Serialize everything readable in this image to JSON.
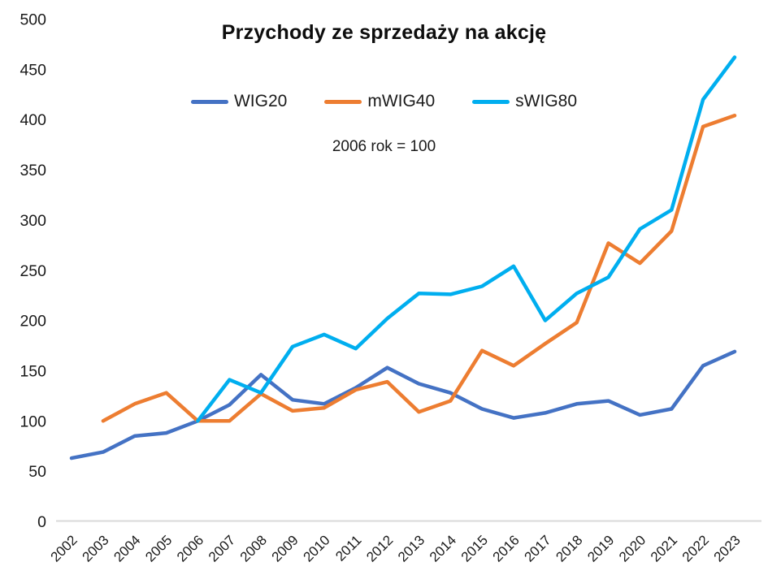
{
  "chart_data": {
    "type": "line",
    "title": "Przychody ze sprzedaży na akcję",
    "subtitle": "2006 rok = 100",
    "x": [
      2002,
      2003,
      2004,
      2005,
      2006,
      2007,
      2008,
      2009,
      2010,
      2011,
      2012,
      2013,
      2014,
      2015,
      2016,
      2017,
      2018,
      2019,
      2020,
      2021,
      2022,
      2023
    ],
    "series": [
      {
        "name": "WIG20",
        "color": "#4472C4",
        "values": [
          63,
          69,
          85,
          88,
          100,
          116,
          146,
          121,
          117,
          133,
          153,
          137,
          128,
          112,
          103,
          108,
          117,
          120,
          106,
          112,
          155,
          169
        ]
      },
      {
        "name": "mWIG40",
        "color": "#ED7D31",
        "values": [
          null,
          100,
          117,
          128,
          100,
          100,
          127,
          110,
          113,
          131,
          139,
          109,
          120,
          170,
          155,
          177,
          198,
          277,
          257,
          289,
          393,
          404
        ]
      },
      {
        "name": "sWIG80",
        "color": "#00AEEF",
        "values": [
          null,
          null,
          null,
          null,
          100,
          141,
          128,
          174,
          186,
          172,
          202,
          227,
          226,
          234,
          254,
          200,
          227,
          243,
          291,
          310,
          420,
          462
        ]
      }
    ],
    "ylim": [
      0,
      500
    ],
    "ytick_step": 50,
    "grid": false,
    "legend_position": "top-center",
    "axis_color": "#D9D9D9",
    "tick_label_color": "#1a1a1a"
  }
}
